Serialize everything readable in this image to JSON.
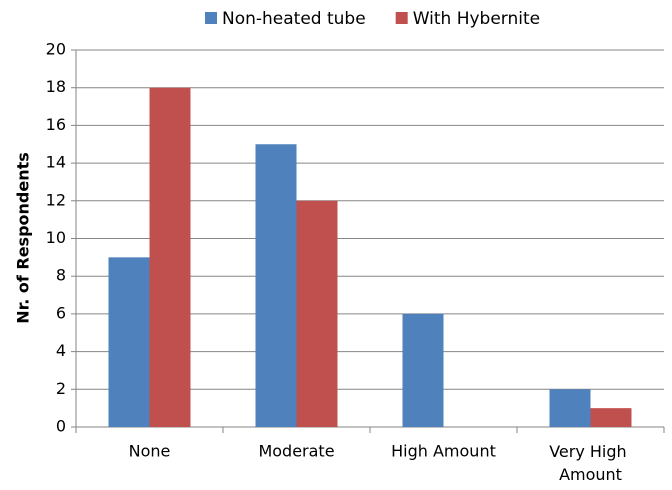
{
  "chart_data": {
    "type": "bar",
    "categories": [
      "None",
      "Moderate",
      "High Amount",
      "Very High Amount"
    ],
    "series": [
      {
        "name": "Non-heated tube",
        "color": "#4f81bd",
        "values": [
          9,
          15,
          6,
          2
        ]
      },
      {
        "name": "With Hybernite",
        "color": "#c0504d",
        "values": [
          18,
          12,
          0,
          1
        ]
      }
    ],
    "ylabel": "Nr. of Respondents",
    "ylim": [
      0,
      20
    ],
    "yticks": [
      0,
      2,
      4,
      6,
      8,
      10,
      12,
      14,
      16,
      18,
      20
    ],
    "grid": true,
    "legend": "top"
  }
}
